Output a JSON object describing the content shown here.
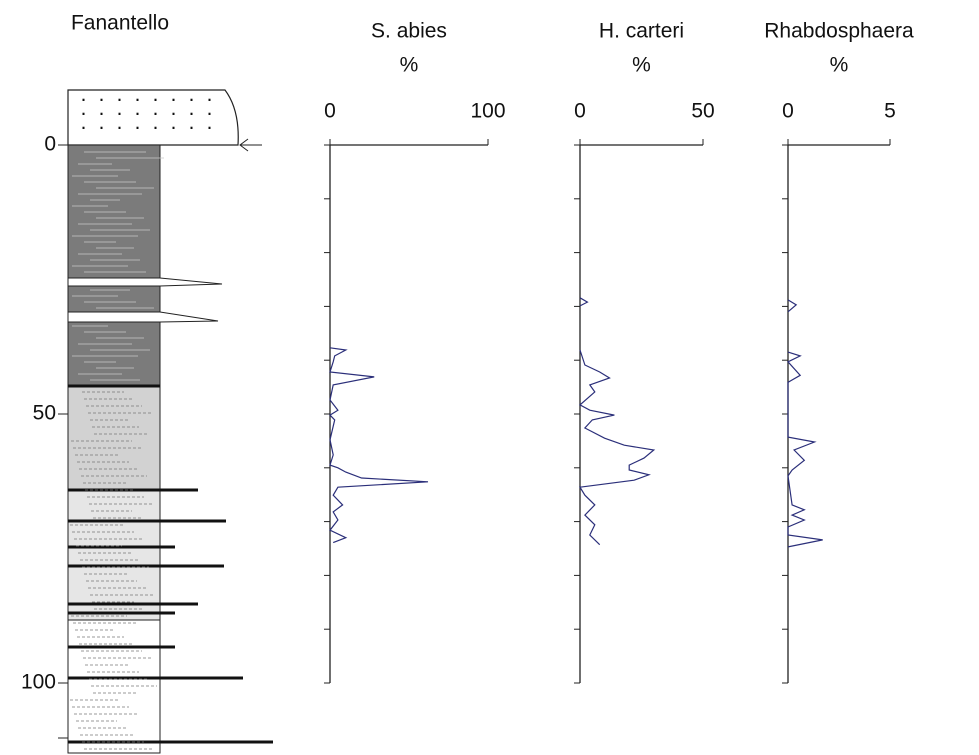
{
  "chart_data": [
    {
      "type": "column",
      "title": "Fanantello",
      "ylim": [
        0,
        100
      ],
      "yticks": [
        0,
        50,
        100
      ]
    },
    {
      "type": "line",
      "title": "S. abies",
      "unit": "%",
      "xlim": [
        0,
        100
      ],
      "xticks": [
        0,
        100
      ],
      "ylim": [
        0,
        100
      ],
      "yticks": [
        0,
        10,
        20,
        30,
        40,
        50,
        60,
        70,
        80,
        90,
        100
      ],
      "ytick_labels": false,
      "color": "#2b2f7a",
      "depth": [
        37.7,
        38.1,
        39.2,
        40.3,
        42.2,
        43.1,
        44.6,
        47.4,
        49.3,
        50.2,
        51.1,
        54.8,
        57.6,
        59.5,
        60.0,
        60.8,
        61.9,
        62.6,
        63.6,
        65.1,
        66.9,
        68.2,
        69.7,
        71.6,
        73.0,
        73.9
      ],
      "values": [
        0,
        10,
        3,
        2,
        0,
        28,
        2,
        0,
        5,
        0,
        3,
        0,
        2,
        0,
        5,
        10,
        20,
        62,
        5,
        2,
        8,
        2,
        5,
        0,
        10,
        2
      ]
    },
    {
      "type": "line",
      "title": "H. carteri",
      "unit": "%",
      "xlim": [
        0,
        50
      ],
      "xticks": [
        0,
        50
      ],
      "ylim": [
        0,
        100
      ],
      "yticks": [
        0,
        10,
        20,
        30,
        40,
        50,
        60,
        70,
        80,
        90,
        100
      ],
      "ytick_labels": false,
      "color": "#2b2f7a",
      "depth": [
        28.4,
        29.2,
        29.9,
        34.0,
        38.1,
        40.9,
        42.2,
        43.3,
        44.6,
        45.9,
        48.3,
        49.3,
        50.2,
        51.1,
        52.6,
        54.5,
        55.8,
        56.7,
        58.2,
        59.5,
        60.4,
        61.3,
        62.3,
        63.6,
        65.1,
        66.9,
        68.8,
        70.6,
        72.5,
        74.3
      ],
      "values": [
        0,
        3,
        0,
        null,
        0,
        2,
        8,
        12,
        4,
        6,
        0,
        4,
        14,
        5,
        2,
        10,
        18,
        30,
        26,
        20,
        20,
        28,
        22,
        0,
        2,
        6,
        2,
        6,
        4,
        8
      ]
    },
    {
      "type": "line",
      "title": "Rhabdosphaera",
      "unit": "%",
      "xlim": [
        0,
        5
      ],
      "xticks": [
        0,
        5
      ],
      "ylim": [
        0,
        100
      ],
      "yticks": [
        0,
        10,
        20,
        30,
        40,
        50,
        60,
        70,
        80,
        90,
        100
      ],
      "ytick_labels": false,
      "color": "#2b2f7a",
      "depth": [
        28.8,
        29.7,
        31.0,
        34.0,
        38.5,
        39.2,
        40.3,
        42.8,
        44.1,
        54.3,
        55.2,
        56.7,
        58.6,
        60.4,
        61.5,
        66.9,
        67.8,
        68.8,
        69.7,
        71.0,
        72.5,
        73.4,
        74.7
      ],
      "values": [
        0,
        0.4,
        0,
        null,
        0,
        0.6,
        0,
        0.6,
        0,
        0,
        1.3,
        0.3,
        0.8,
        0.2,
        0,
        0.2,
        0.8,
        0.2,
        0.8,
        0,
        0,
        1.7,
        0
      ]
    }
  ]
}
